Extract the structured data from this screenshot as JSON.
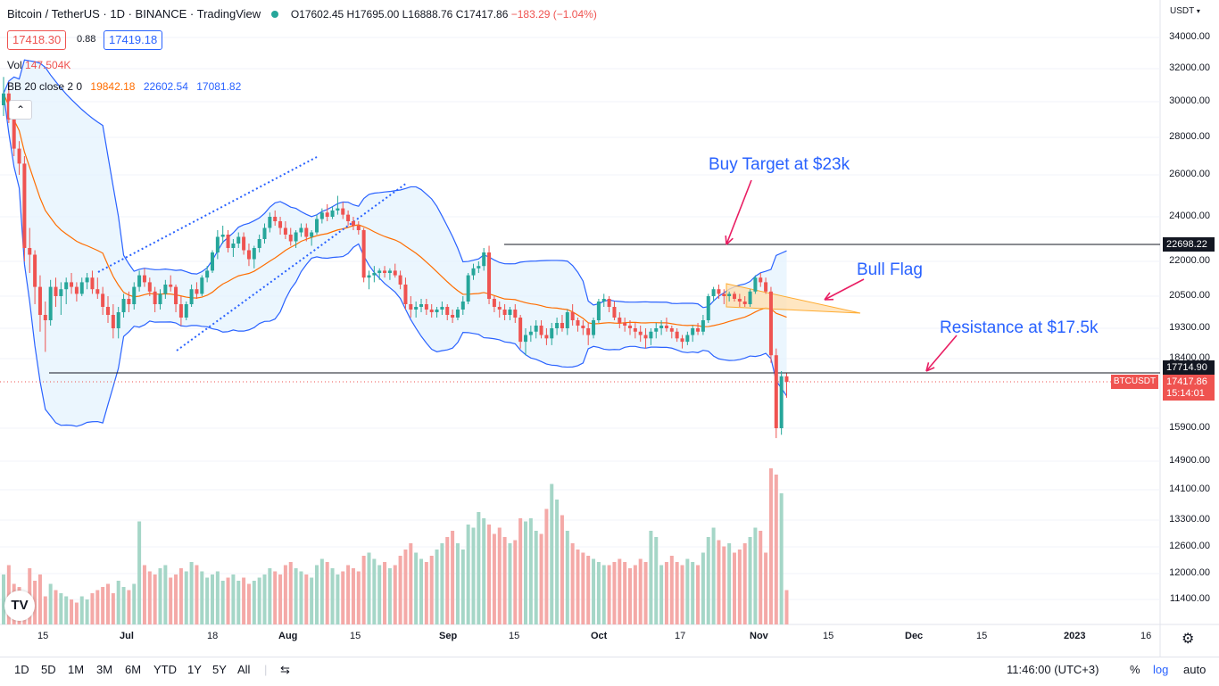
{
  "header": {
    "symbol": "Bitcoin / TetherUS · 1D · BINANCE · TradingView",
    "open": "O17602.45",
    "high": "H17695.00",
    "low": "L16888.76",
    "close": "C17417.86",
    "change": "−183.29 (−1.04%)",
    "bid": "17418.30",
    "spread": "0.88",
    "ask": "17419.18"
  },
  "indicators": {
    "vol_label": "Vol",
    "vol_value": "147.504K",
    "bb_label": "BB 20 close 2 0",
    "bb_mid": "19842.18",
    "bb_upper": "22602.54",
    "bb_lower": "17081.82"
  },
  "annotations": {
    "buy_target": "Buy Target at $23k",
    "bull_flag": "Bull Flag",
    "resistance": "Resistance at $17.5k"
  },
  "price_axis": {
    "unit": "USDT",
    "ticks": [
      "34000.00",
      "32000.00",
      "30000.00",
      "28000.00",
      "26000.00",
      "24000.00",
      "22000.00",
      "20500.00",
      "19300.00",
      "18400.00",
      "15900.00",
      "14900.00",
      "14100.00",
      "13300.00",
      "12600.00",
      "12000.00",
      "11400.00"
    ],
    "tag_22698": "22698.22",
    "tag_17714": "17714.90",
    "tag_last": "17417.86",
    "countdown": "15:14:01",
    "symbol_tag": "BTCUSDT"
  },
  "time_axis": [
    "15",
    "Jul",
    "18",
    "Aug",
    "15",
    "Sep",
    "15",
    "Oct",
    "17",
    "Nov",
    "15",
    "Dec",
    "15",
    "2023",
    "16"
  ],
  "toolbar": {
    "ranges": [
      "1D",
      "5D",
      "1M",
      "3M",
      "6M",
      "YTD",
      "1Y",
      "5Y",
      "All"
    ],
    "clock": "11:46:00 (UTC+3)",
    "percent": "%",
    "log": "log",
    "auto": "auto"
  },
  "colors": {
    "up": "#26a69a",
    "down": "#ef5350",
    "bb": "#2962ff",
    "basis": "#ff6d00",
    "band_fill": "#e3f2fd"
  },
  "chart_data": {
    "type": "candlestick",
    "candles": [
      [
        29800,
        31500,
        29200,
        30500
      ],
      [
        30500,
        31200,
        28800,
        29000
      ],
      [
        29000,
        29600,
        27000,
        27400
      ],
      [
        27400,
        27800,
        26000,
        26600
      ],
      [
        26600,
        27000,
        22000,
        22600
      ],
      [
        22600,
        23500,
        21500,
        22300
      ],
      [
        22300,
        22500,
        20200,
        20900
      ],
      [
        20900,
        21400,
        19200,
        19800
      ],
      [
        19800,
        20300,
        18600,
        19600
      ],
      [
        19600,
        21200,
        19400,
        20900
      ],
      [
        20900,
        21300,
        20100,
        20500
      ],
      [
        20500,
        21100,
        19800,
        20800
      ],
      [
        20800,
        21300,
        20200,
        21100
      ],
      [
        21100,
        21500,
        20600,
        20900
      ],
      [
        20900,
        21100,
        20300,
        20600
      ],
      [
        20600,
        21300,
        20500,
        21100
      ],
      [
        21100,
        21500,
        20800,
        21300
      ],
      [
        21300,
        21600,
        20600,
        20800
      ],
      [
        20800,
        21300,
        20400,
        20600
      ],
      [
        20600,
        20900,
        19800,
        20100
      ],
      [
        20100,
        20500,
        19500,
        19800
      ],
      [
        19800,
        20200,
        19000,
        19300
      ],
      [
        19300,
        20100,
        19000,
        19900
      ],
      [
        19900,
        20600,
        19700,
        20400
      ],
      [
        20400,
        20700,
        19900,
        20200
      ],
      [
        20200,
        21100,
        20000,
        20900
      ],
      [
        20900,
        21600,
        20700,
        21400
      ],
      [
        21400,
        21700,
        20900,
        21100
      ],
      [
        21100,
        21300,
        20500,
        20700
      ],
      [
        20700,
        20900,
        19900,
        20200
      ],
      [
        20200,
        20800,
        20000,
        20600
      ],
      [
        20600,
        21200,
        20400,
        21000
      ],
      [
        21000,
        21400,
        20700,
        20900
      ],
      [
        20900,
        21000,
        19900,
        20200
      ],
      [
        20200,
        20500,
        19400,
        19700
      ],
      [
        19700,
        20300,
        19600,
        20200
      ],
      [
        20200,
        21000,
        20100,
        20800
      ],
      [
        20800,
        21100,
        20400,
        20600
      ],
      [
        20600,
        21400,
        20500,
        21300
      ],
      [
        21300,
        21800,
        21100,
        21600
      ],
      [
        21600,
        22500,
        21500,
        22400
      ],
      [
        22400,
        23400,
        22100,
        23100
      ],
      [
        23100,
        23600,
        22800,
        23200
      ],
      [
        23200,
        23400,
        22400,
        22600
      ],
      [
        22600,
        23000,
        22200,
        22800
      ],
      [
        22800,
        23300,
        22600,
        23100
      ],
      [
        23100,
        23300,
        22300,
        22500
      ],
      [
        22500,
        22800,
        21800,
        22100
      ],
      [
        22100,
        22700,
        21700,
        22600
      ],
      [
        22600,
        23200,
        22400,
        23000
      ],
      [
        23000,
        23700,
        22800,
        23500
      ],
      [
        23500,
        24200,
        23300,
        24000
      ],
      [
        24000,
        24300,
        23600,
        23800
      ],
      [
        23800,
        24000,
        23200,
        23500
      ],
      [
        23500,
        23800,
        23000,
        23200
      ],
      [
        23200,
        23500,
        22700,
        22900
      ],
      [
        22900,
        23400,
        22600,
        23300
      ],
      [
        23300,
        23700,
        23100,
        23500
      ],
      [
        23500,
        23700,
        22900,
        23100
      ],
      [
        23100,
        23400,
        22700,
        23300
      ],
      [
        23300,
        24100,
        23200,
        23900
      ],
      [
        23900,
        24400,
        23700,
        24200
      ],
      [
        24200,
        24600,
        23800,
        24000
      ],
      [
        24000,
        24500,
        23900,
        24300
      ],
      [
        24300,
        25000,
        24100,
        24400
      ],
      [
        24400,
        24700,
        23900,
        24100
      ],
      [
        24100,
        24300,
        23600,
        23800
      ],
      [
        23800,
        24000,
        23400,
        23600
      ],
      [
        23600,
        23800,
        23200,
        23400
      ],
      [
        23400,
        23500,
        21100,
        21300
      ],
      [
        21300,
        21600,
        20800,
        21400
      ],
      [
        21400,
        21800,
        21100,
        21500
      ],
      [
        21500,
        21700,
        21200,
        21600
      ],
      [
        21600,
        21800,
        21300,
        21500
      ],
      [
        21500,
        21700,
        21200,
        21600
      ],
      [
        21600,
        21900,
        21300,
        21400
      ],
      [
        21400,
        21600,
        20800,
        21000
      ],
      [
        21000,
        21300,
        20000,
        20200
      ],
      [
        20200,
        20500,
        19700,
        20000
      ],
      [
        20000,
        20300,
        19700,
        20100
      ],
      [
        20100,
        20400,
        19900,
        20200
      ],
      [
        20200,
        20400,
        19800,
        20000
      ],
      [
        20000,
        20200,
        19700,
        19900
      ],
      [
        19900,
        20100,
        19700,
        20000
      ],
      [
        20000,
        20300,
        19800,
        20100
      ],
      [
        20100,
        20200,
        19600,
        19800
      ],
      [
        19800,
        20000,
        19500,
        19700
      ],
      [
        19700,
        20100,
        19600,
        20000
      ],
      [
        20000,
        20500,
        19800,
        20300
      ],
      [
        20300,
        21500,
        20200,
        21400
      ],
      [
        21400,
        21900,
        21200,
        21700
      ],
      [
        21700,
        22000,
        21500,
        21800
      ],
      [
        21800,
        22600,
        21600,
        22400
      ],
      [
        22400,
        22700,
        20200,
        20400
      ],
      [
        20400,
        20500,
        19900,
        20100
      ],
      [
        20100,
        20300,
        19700,
        20000
      ],
      [
        20000,
        20200,
        19600,
        19800
      ],
      [
        19800,
        20100,
        19600,
        20000
      ],
      [
        20000,
        20200,
        19500,
        19700
      ],
      [
        19700,
        19800,
        18700,
        18900
      ],
      [
        18900,
        19300,
        18500,
        19100
      ],
      [
        19100,
        19400,
        18900,
        19200
      ],
      [
        19200,
        19600,
        19000,
        19400
      ],
      [
        19400,
        19600,
        19000,
        19100
      ],
      [
        19100,
        19300,
        18800,
        19000
      ],
      [
        19000,
        19500,
        18800,
        19300
      ],
      [
        19300,
        19700,
        19100,
        19500
      ],
      [
        19500,
        19800,
        19200,
        19300
      ],
      [
        19300,
        20000,
        19100,
        19900
      ],
      [
        19900,
        20200,
        19400,
        19600
      ],
      [
        19600,
        19700,
        19200,
        19400
      ],
      [
        19400,
        19600,
        19100,
        19300
      ],
      [
        19300,
        19500,
        18800,
        19100
      ],
      [
        19100,
        19700,
        19000,
        19600
      ],
      [
        19600,
        20400,
        19500,
        20300
      ],
      [
        20300,
        20600,
        20100,
        20400
      ],
      [
        20400,
        20500,
        19900,
        20100
      ],
      [
        20100,
        20300,
        19600,
        19700
      ],
      [
        19700,
        19900,
        19300,
        19500
      ],
      [
        19500,
        19700,
        19200,
        19400
      ],
      [
        19400,
        19600,
        19100,
        19300
      ],
      [
        19300,
        19500,
        19000,
        19200
      ],
      [
        19200,
        19400,
        18900,
        19100
      ],
      [
        19100,
        19300,
        18700,
        19000
      ],
      [
        19000,
        19300,
        18800,
        19200
      ],
      [
        19200,
        19500,
        19000,
        19300
      ],
      [
        19300,
        19600,
        19100,
        19400
      ],
      [
        19400,
        19700,
        19200,
        19300
      ],
      [
        19300,
        19400,
        19000,
        19200
      ],
      [
        19200,
        19300,
        18900,
        19000
      ],
      [
        19000,
        19100,
        18700,
        18900
      ],
      [
        18900,
        19200,
        18800,
        19100
      ],
      [
        19100,
        19400,
        18900,
        19300
      ],
      [
        19300,
        19500,
        19100,
        19200
      ],
      [
        19200,
        19800,
        19100,
        19600
      ],
      [
        19600,
        20600,
        19500,
        20500
      ],
      [
        20500,
        20900,
        20300,
        20800
      ],
      [
        20800,
        21000,
        20400,
        20600
      ],
      [
        20600,
        20800,
        20200,
        20500
      ],
      [
        20500,
        20700,
        20300,
        20600
      ],
      [
        20600,
        20700,
        20300,
        20400
      ],
      [
        20400,
        20600,
        20100,
        20300
      ],
      [
        20300,
        20500,
        20100,
        20200
      ],
      [
        20200,
        20800,
        20100,
        20700
      ],
      [
        20700,
        21400,
        20600,
        21300
      ],
      [
        21300,
        21500,
        20900,
        21100
      ],
      [
        21100,
        21300,
        20600,
        20700
      ],
      [
        20700,
        20900,
        18200,
        18500
      ],
      [
        18500,
        18700,
        15600,
        15900
      ],
      [
        15900,
        17800,
        15700,
        17600
      ],
      [
        17600,
        17700,
        16900,
        17418
      ]
    ],
    "volume": [
      1.6,
      1.9,
      1.3,
      1.2,
      1.0,
      1.8,
      1.4,
      1.6,
      0.9,
      1.3,
      1.1,
      1.0,
      0.9,
      0.8,
      0.7,
      0.9,
      0.8,
      1.0,
      1.1,
      1.2,
      1.3,
      1.0,
      1.4,
      1.2,
      1.1,
      1.3,
      3.3,
      1.9,
      1.7,
      1.6,
      1.8,
      1.9,
      1.5,
      1.6,
      1.8,
      1.7,
      2.0,
      1.9,
      1.7,
      1.5,
      1.6,
      1.7,
      1.4,
      1.5,
      1.6,
      1.4,
      1.5,
      1.3,
      1.4,
      1.5,
      1.6,
      1.8,
      1.7,
      1.6,
      1.9,
      2.0,
      1.8,
      1.7,
      1.6,
      1.5,
      1.9,
      2.1,
      2.0,
      1.8,
      1.6,
      1.7,
      1.9,
      1.8,
      1.7,
      2.2,
      2.3,
      2.1,
      1.9,
      2.0,
      1.8,
      1.9,
      2.2,
      2.4,
      2.6,
      2.3,
      2.1,
      2.0,
      2.2,
      2.4,
      2.6,
      2.8,
      3.0,
      2.6,
      2.4,
      3.2,
      3.1,
      3.6,
      3.4,
      3.2,
      2.9,
      3.1,
      2.8,
      2.6,
      2.7,
      3.4,
      3.3,
      3.4,
      3.0,
      2.9,
      3.7,
      4.5,
      4.0,
      3.5,
      3.0,
      2.6,
      2.4,
      2.3,
      2.2,
      2.1,
      2.0,
      1.9,
      1.9,
      2.0,
      2.1,
      2.0,
      1.8,
      1.9,
      2.1,
      2.0,
      3.0,
      2.8,
      1.9,
      2.0,
      2.2,
      2.0,
      1.9,
      2.1,
      2.0,
      1.9,
      2.3,
      2.8,
      3.1,
      2.7,
      2.5,
      2.6,
      2.3,
      2.4,
      2.6,
      2.8,
      3.1,
      3.0,
      2.3,
      5.0,
      4.8,
      4.2,
      1.1
    ],
    "series": [
      {
        "values": []
      }
    ],
    "annotations": [
      "Buy Target at $23k",
      "Bull Flag",
      "Resistance at $17.5k"
    ],
    "levels": [
      22698.22,
      17714.9,
      17417.86
    ],
    "ylim": [
      11000,
      35000
    ]
  }
}
